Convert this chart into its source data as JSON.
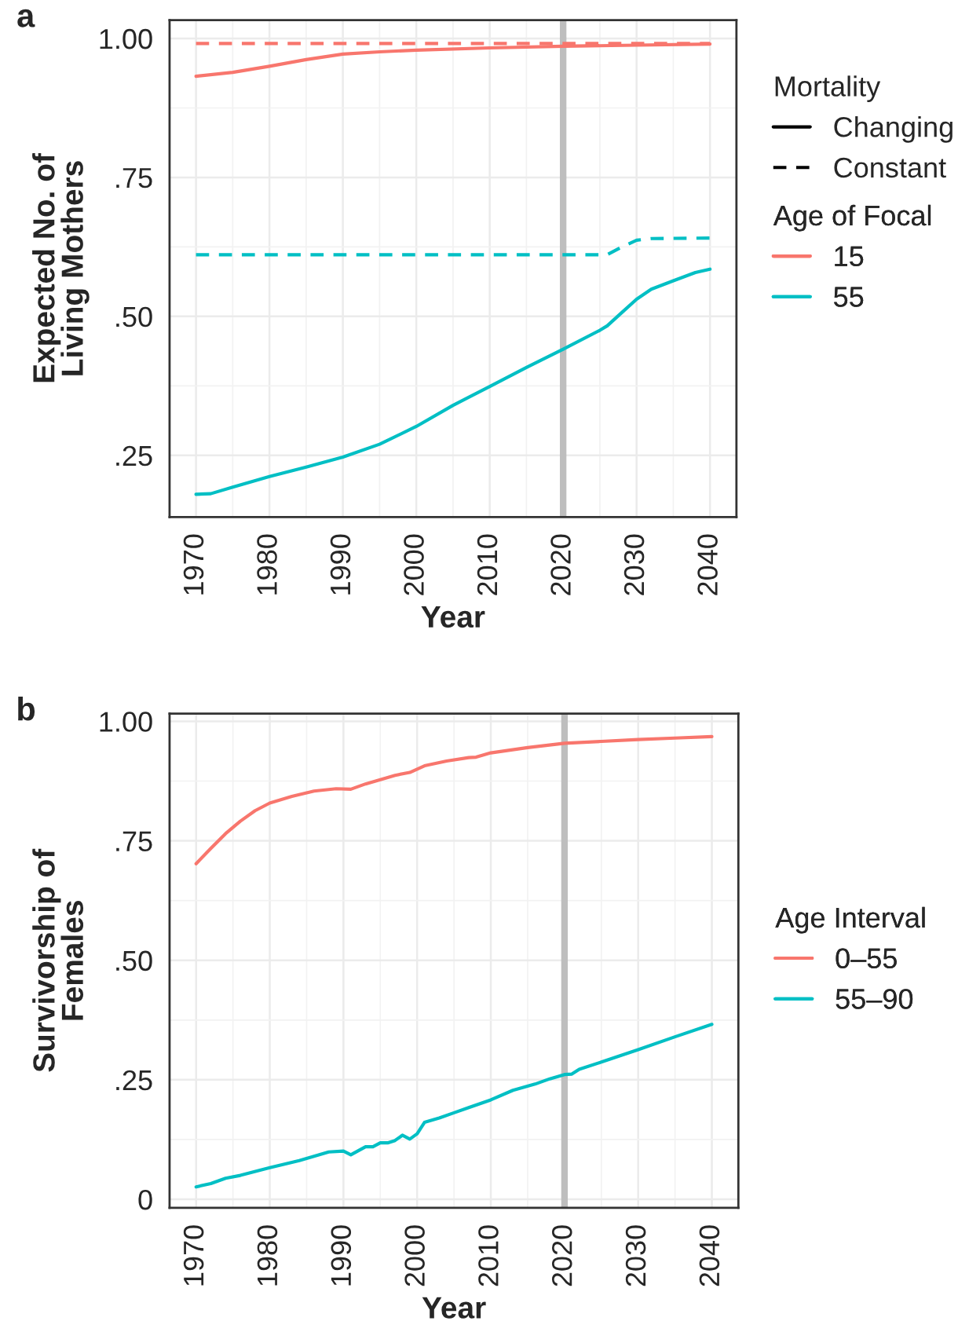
{
  "chart_data": [
    {
      "type": "line",
      "title": "a",
      "xlabel": "Year",
      "ylabel": "Expected No. of\nLiving Mothers",
      "legend_title": [
        "Mortality",
        "Age of Focal"
      ],
      "annotations": [
        "Changing",
        "Constant",
        "15",
        "55"
      ],
      "legend": "right",
      "grid": true,
      "line_style": "solid",
      "xlim": [
        1966.4,
        2043.6
      ],
      "xticks": [
        1970,
        1980,
        1990,
        2000,
        2010,
        2020,
        2030,
        2040
      ],
      "ylim": [
        0.139,
        1.033
      ],
      "yticks": [
        {
          "value": 0.25,
          "label": ".25"
        },
        {
          "value": 0.5,
          "label": ".50"
        },
        {
          "value": 0.75,
          "label": ".75"
        },
        {
          "value": 1.0,
          "label": "1.00"
        }
      ],
      "ref_lines": [
        {
          "axis": "x",
          "value": 2020,
          "label": null,
          "color": "#bebebe"
        }
      ],
      "series": [
        {
          "line_style": "solid",
          "color": "#f8766d",
          "x": [
            1970,
            1975,
            1980,
            1985,
            1990,
            1995,
            2000,
            2010,
            2020,
            2030,
            2040
          ],
          "values": [
            0.932,
            0.939,
            0.95,
            0.962,
            0.972,
            0.976,
            0.979,
            0.983,
            0.986,
            0.988,
            0.99
          ]
        },
        {
          "line_style": "dashed",
          "color": "#f8766d",
          "x": [
            1970,
            2040
          ],
          "values": [
            0.991,
            0.991
          ]
        },
        {
          "line_style": "solid",
          "color": "#00bfc4",
          "x": [
            1970,
            1972,
            1975,
            1980,
            1985,
            1990,
            1995,
            2000,
            2005,
            2010,
            2015,
            2020,
            2025,
            2026,
            2028,
            2030,
            2032,
            2035,
            2038,
            2040
          ],
          "values": [
            0.18,
            0.181,
            0.193,
            0.212,
            0.229,
            0.247,
            0.27,
            0.302,
            0.34,
            0.374,
            0.408,
            0.441,
            0.475,
            0.483,
            0.507,
            0.531,
            0.549,
            0.564,
            0.579,
            0.585
          ]
        },
        {
          "line_style": "dashed",
          "color": "#00bfc4",
          "x": [
            1970,
            2026,
            2028,
            2030,
            2032,
            2040
          ],
          "values": [
            0.611,
            0.611,
            0.625,
            0.637,
            0.64,
            0.641
          ]
        }
      ]
    },
    {
      "type": "line",
      "title": "b",
      "xlabel": "Year",
      "ylabel": "Survivorship of\nFemales",
      "legend_title": [
        "Age Interval"
      ],
      "legend": "right",
      "grid": true,
      "line_style": "solid",
      "xlim": [
        1966.4,
        2043.6
      ],
      "xticks": [
        1970,
        1980,
        1990,
        2000,
        2010,
        2020,
        2030,
        2040
      ],
      "ylim": [
        -0.018,
        1.016
      ],
      "yticks": [
        0,
        {
          "value": 0.25,
          "label": ".25"
        },
        {
          "value": 0.5,
          "label": ".50"
        },
        {
          "value": 0.75,
          "label": ".75"
        },
        {
          "value": 1.0,
          "label": "1.00"
        }
      ],
      "ref_lines": [
        {
          "axis": "x",
          "value": 2020,
          "label": null,
          "color": "#bebebe"
        }
      ],
      "series": [
        {
          "name": "0–55",
          "color": "#f8766d",
          "x": [
            1970,
            1972,
            1974,
            1976,
            1978,
            1980,
            1983,
            1986,
            1989,
            1991,
            1993,
            1995,
            1997,
            1999,
            2001,
            2004,
            2007,
            2008,
            2010,
            2015,
            2020,
            2025,
            2030,
            2035,
            2040
          ],
          "values": [
            0.702,
            0.734,
            0.765,
            0.791,
            0.813,
            0.829,
            0.843,
            0.854,
            0.859,
            0.858,
            0.869,
            0.878,
            0.887,
            0.893,
            0.907,
            0.917,
            0.924,
            0.925,
            0.934,
            0.945,
            0.954,
            0.958,
            0.962,
            0.965,
            0.968
          ]
        },
        {
          "name": "55–90",
          "color": "#00bfc4",
          "x": [
            1970,
            1972,
            1974,
            1976,
            1980,
            1984,
            1988,
            1990,
            1991,
            1993,
            1994,
            1995,
            1996,
            1997,
            1998,
            1999,
            2000,
            2001,
            2003,
            2005,
            2007,
            2010,
            2013,
            2016,
            2018,
            2020,
            2021,
            2022,
            2025,
            2030,
            2035,
            2040
          ],
          "values": [
            0.026,
            0.033,
            0.044,
            0.05,
            0.066,
            0.081,
            0.099,
            0.101,
            0.093,
            0.11,
            0.11,
            0.118,
            0.118,
            0.123,
            0.134,
            0.126,
            0.137,
            0.161,
            0.17,
            0.181,
            0.192,
            0.208,
            0.228,
            0.241,
            0.252,
            0.261,
            0.262,
            0.272,
            0.287,
            0.313,
            0.34,
            0.366
          ]
        }
      ]
    }
  ]
}
